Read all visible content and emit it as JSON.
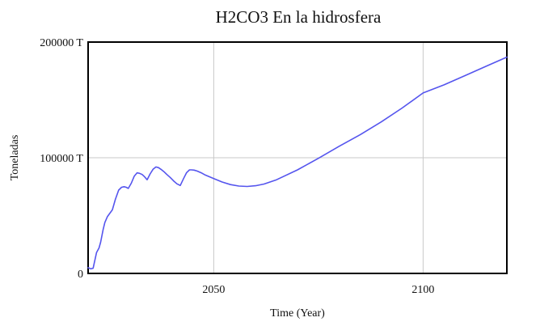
{
  "chart_data": {
    "type": "line",
    "title": "H2CO3 En la hidrosfera",
    "xlabel": "Time (Year)",
    "ylabel": "Toneladas",
    "xlim": [
      2020,
      2120
    ],
    "ylim": [
      0,
      200000
    ],
    "x_ticks": [
      {
        "value": 2050,
        "label": "2050"
      },
      {
        "value": 2100,
        "label": "2100"
      }
    ],
    "y_ticks": [
      {
        "value": 0,
        "label": "0"
      },
      {
        "value": 100000,
        "label": "100000 T"
      },
      {
        "value": 200000,
        "label": "200000 T"
      }
    ],
    "grid": true,
    "colors": {
      "line": "#5555ee",
      "grid": "#c8c8c8",
      "frame": "#000000"
    },
    "series": [
      {
        "name": "",
        "x": [
          2020,
          2020.6,
          2021.2,
          2022,
          2022.6,
          2023,
          2023.6,
          2024,
          2024.6,
          2025.2,
          2025.8,
          2026.5,
          2027.3,
          2028,
          2028.6,
          2029.1,
          2029.6,
          2030.3,
          2031,
          2031.7,
          2032.3,
          2032.9,
          2033.5,
          2034.1,
          2034.8,
          2035.5,
          2036.2,
          2036.8,
          2037.4,
          2038.1,
          2038.8,
          2039.6,
          2040.4,
          2041.2,
          2042,
          2042.8,
          2043.5,
          2044.2,
          2044.7,
          2045.3,
          2046,
          2047,
          2048,
          2050,
          2052,
          2054,
          2056,
          2058,
          2060,
          2062,
          2065,
          2070,
          2075,
          2080,
          2085,
          2090,
          2095,
          2100,
          2105,
          2110,
          2115,
          2120
        ],
        "values": [
          5000,
          4000,
          4500,
          18000,
          22000,
          27000,
          38000,
          44000,
          49000,
          52000,
          55000,
          64000,
          72000,
          74500,
          75000,
          74500,
          73500,
          78000,
          84000,
          87000,
          86500,
          85500,
          83500,
          81000,
          86000,
          90000,
          92000,
          91500,
          90000,
          88000,
          85500,
          83000,
          80000,
          77500,
          76000,
          82000,
          87000,
          89500,
          89500,
          89300,
          88500,
          87000,
          85000,
          82000,
          79000,
          76800,
          75500,
          75200,
          75800,
          77300,
          81000,
          89500,
          99500,
          110000,
          120000,
          131000,
          143000,
          156000,
          163000,
          171000,
          179000,
          187000
        ]
      }
    ]
  }
}
